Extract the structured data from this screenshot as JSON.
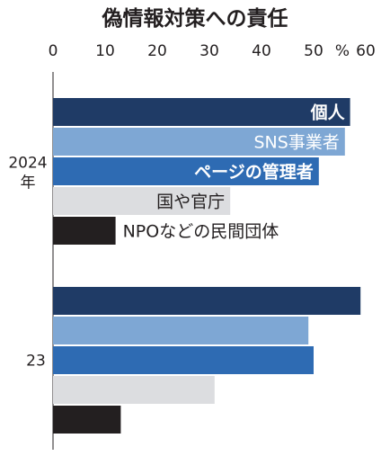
{
  "chart_data": {
    "type": "bar",
    "orientation": "horizontal",
    "title": "偽情報対策への責任",
    "unit": "%",
    "xlim": [
      0,
      60
    ],
    "xticks": [
      "0",
      "10",
      "20",
      "30",
      "40",
      "50",
      "60"
    ],
    "groups": [
      {
        "label": "2024",
        "sublabel": "年"
      },
      {
        "label": "23",
        "sublabel": ""
      }
    ],
    "series": [
      {
        "name": "個人",
        "color": "#1f3b66",
        "label_style": "bold-white",
        "values": [
          57,
          59
        ]
      },
      {
        "name": "SNS事業者",
        "color": "#7ea7d4",
        "label_style": "white",
        "values": [
          56,
          49
        ]
      },
      {
        "name": "ページの管理者",
        "color": "#2e6bb3",
        "label_style": "bold-white",
        "values": [
          51,
          50
        ]
      },
      {
        "name": "国や官庁",
        "color": "#dcdde0",
        "label_style": "dark",
        "values": [
          34,
          31
        ]
      },
      {
        "name": "NPOなどの民間団体",
        "color": "#231f20",
        "label_style": "dark-outside",
        "values": [
          12,
          13
        ]
      }
    ]
  }
}
